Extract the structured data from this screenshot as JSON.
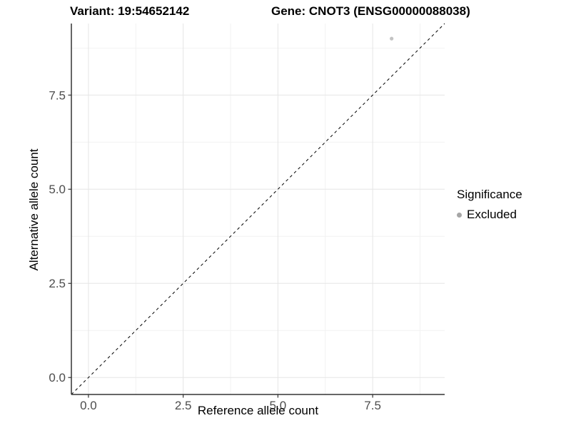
{
  "titles": {
    "variant": "Variant: 19:54652142",
    "gene": "Gene: CNOT3 (ENSG00000088038)"
  },
  "chart_data": {
    "type": "scatter",
    "xlabel": "Reference allele count",
    "ylabel": "Alternative allele count",
    "xlim": [
      -0.45,
      9.4
    ],
    "ylim": [
      -0.45,
      9.4
    ],
    "x_ticks": [
      0.0,
      2.5,
      5.0,
      7.5
    ],
    "y_ticks": [
      0.0,
      2.5,
      5.0,
      7.5
    ],
    "x_minor_ticks": [
      1.25,
      3.75,
      6.25,
      8.75
    ],
    "y_minor_ticks": [
      1.25,
      3.75,
      6.25,
      8.75
    ],
    "tick_decimals": 1,
    "grid": "major+minor",
    "points": [
      {
        "x": 8,
        "y": 9,
        "series": "Excluded"
      }
    ],
    "reference_line": {
      "slope": 1,
      "intercept": 0,
      "style": "dashed"
    },
    "legend": {
      "title": "Significance",
      "position": "right",
      "entries": [
        {
          "label": "Excluded",
          "color": "#c3c3c3"
        }
      ]
    }
  },
  "colors": {
    "grid_major": "#e5e5e5",
    "grid_minor": "#f2f2f2",
    "axis_line": "#333333",
    "tick_mark": "#333333",
    "tick_label": "#4d4d4d",
    "point": "#c3c3c3",
    "legend_key": "#a6a6a6",
    "ref_line": "#000000"
  }
}
